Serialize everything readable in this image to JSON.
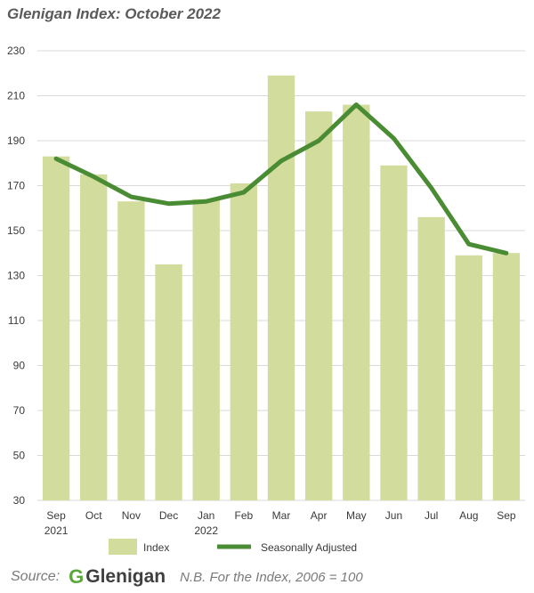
{
  "title": "Glenigan Index: October 2022",
  "footer": {
    "source_label": "Source:",
    "logo_text": "Glenigan",
    "note": "N.B. For the Index, 2006 = 100"
  },
  "colors": {
    "bar": "#d2dc9c",
    "line": "#4a8c33",
    "grid": "#d9d9d9",
    "text": "#3a3a3a"
  },
  "chart_data": {
    "type": "bar",
    "categories": [
      "Sep",
      "Oct",
      "Nov",
      "Dec",
      "Jan",
      "Feb",
      "Mar",
      "Apr",
      "May",
      "Jun",
      "Jul",
      "Aug",
      "Sep"
    ],
    "category_sublabels": [
      "2021",
      "",
      "",
      "",
      "2022",
      "",
      "",
      "",
      "",
      "",
      "",
      "",
      ""
    ],
    "series": [
      {
        "name": "Index",
        "type": "bar",
        "values": [
          183,
          175,
          163,
          135,
          164,
          171,
          219,
          203,
          206,
          179,
          156,
          139,
          140
        ]
      },
      {
        "name": "Seasonally Adjusted",
        "type": "line",
        "values": [
          182,
          174,
          165,
          162,
          163,
          167,
          181,
          190,
          206,
          191,
          169,
          144,
          140
        ]
      }
    ],
    "ylim": [
      30,
      230
    ],
    "yticks": [
      30,
      50,
      70,
      90,
      110,
      130,
      150,
      170,
      190,
      210,
      230
    ],
    "grid": true,
    "legend_position": "bottom"
  }
}
